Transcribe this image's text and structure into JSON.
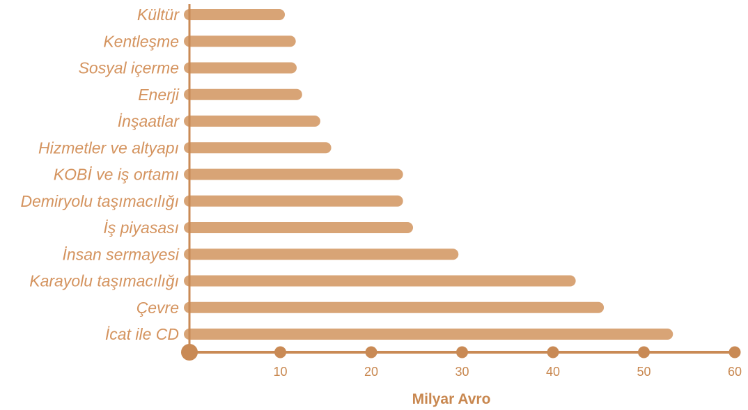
{
  "colors": {
    "bar": "#d8a476",
    "axis": "#c98a55",
    "label": "#d4935e",
    "tick_label": "#c8874f",
    "background": "#ffffff"
  },
  "chart_data": {
    "type": "bar",
    "orientation": "horizontal",
    "categories": [
      "Kültür",
      "Kentleşme",
      "Sosyal içerme",
      "Enerji",
      "İnşaatlar",
      "Hizmetler ve altyapı",
      "KOBİ ve iş ortamı",
      "Demiryolu taşımacılığı",
      "İş piyasası",
      "İnsan sermayesi",
      "Karayolu taşımacılığı",
      "Çevre",
      "İcat ile CD"
    ],
    "values": [
      10.5,
      11.7,
      11.8,
      12.4,
      14.4,
      15.6,
      23.5,
      23.5,
      24.6,
      29.6,
      42.5,
      45.6,
      53.2
    ],
    "xlabel": "Milyar Avro",
    "ylabel": "",
    "title": "",
    "xlim": [
      0,
      60
    ],
    "xticks": [
      10,
      20,
      30,
      40,
      50,
      60
    ],
    "grid": false,
    "legend": "none"
  }
}
